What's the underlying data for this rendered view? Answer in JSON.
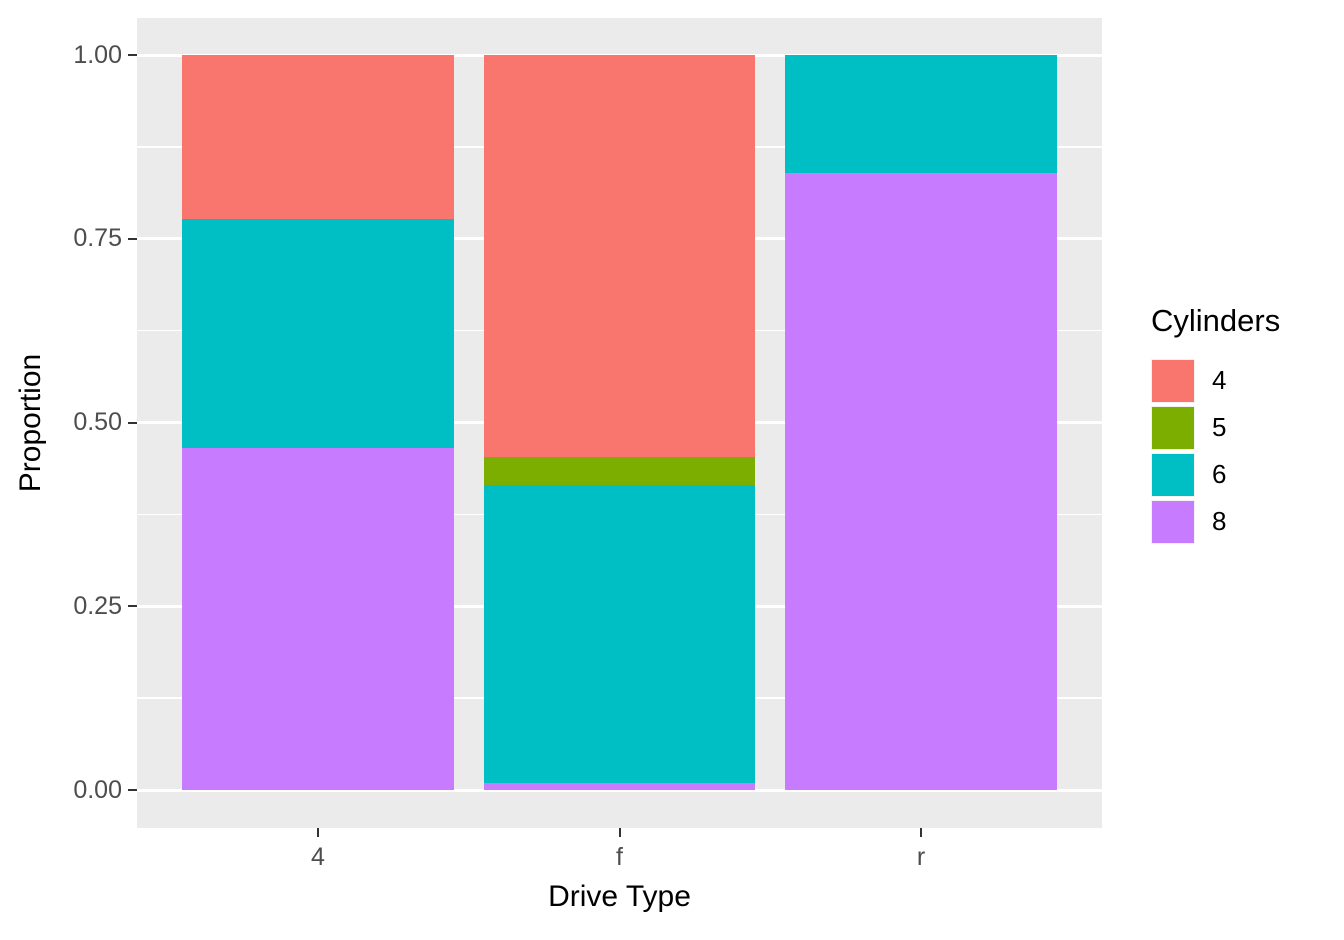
{
  "chart_data": {
    "type": "bar",
    "stacked": true,
    "normalized": true,
    "title": "",
    "xlabel": "Drive Type",
    "ylabel": "Proportion",
    "categories": [
      "4",
      "f",
      "r"
    ],
    "legend": {
      "title": "Cylinders",
      "position": "right",
      "entries": [
        "4",
        "5",
        "6",
        "8"
      ]
    },
    "series": [
      {
        "name": "4",
        "color": "#F8766D",
        "values": [
          0.2233,
          0.5472,
          0.0
        ]
      },
      {
        "name": "5",
        "color": "#7CAE00",
        "values": [
          0.0,
          0.0377,
          0.0
        ]
      },
      {
        "name": "6",
        "color": "#00BFC4",
        "values": [
          0.3107,
          0.4057,
          0.16
        ]
      },
      {
        "name": "8",
        "color": "#C77CFF",
        "values": [
          0.466,
          0.0094,
          0.84
        ]
      }
    ],
    "stack_order_top_to_bottom": [
      "4",
      "5",
      "6",
      "8"
    ],
    "ylim": [
      0,
      1
    ],
    "y_major_ticks": [
      0.0,
      0.25,
      0.5,
      0.75,
      1.0
    ],
    "y_tick_labels": [
      "0.00",
      "0.25",
      "0.50",
      "0.75",
      "1.00"
    ],
    "y_minor_ticks": [
      0.125,
      0.375,
      0.625,
      0.875
    ],
    "grid": true,
    "style": {
      "panel_background": "#EBEBEB",
      "gridline_color": "#FFFFFF",
      "tick_label_color": "#4D4D4D",
      "axis_title_color": "#000000",
      "bar_width_fraction": 0.9
    }
  }
}
